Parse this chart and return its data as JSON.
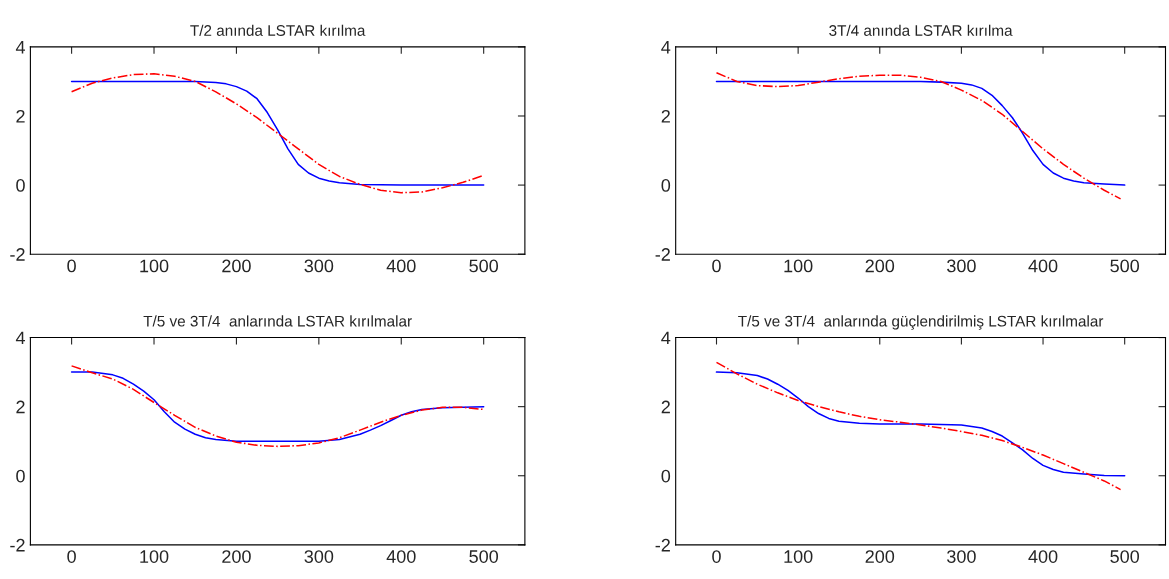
{
  "chart_data": [
    {
      "type": "line",
      "title": "T/2 anında LSTAR kırılma",
      "xlim": [
        -50,
        550
      ],
      "ylim": [
        -2,
        4
      ],
      "xticks": [
        0,
        100,
        200,
        300,
        400,
        500
      ],
      "yticks": [
        -2,
        0,
        2,
        4
      ],
      "series": [
        {
          "color": "#0000ff",
          "line_style": "solid",
          "x": [
            0,
            50,
            100,
            150,
            175,
            187.5,
            200,
            212.5,
            225,
            237.5,
            250,
            262.5,
            275,
            287.5,
            300,
            312.5,
            325,
            350,
            400,
            500
          ],
          "values": [
            3,
            3,
            3,
            3,
            2.97,
            2.93,
            2.85,
            2.72,
            2.5,
            2.1,
            1.6,
            1.05,
            0.6,
            0.35,
            0.2,
            0.12,
            0.07,
            0.02,
            0,
            0
          ]
        },
        {
          "color": "#ff0000",
          "line_style": "dashdot",
          "x": [
            0,
            25,
            50,
            75,
            100,
            125,
            150,
            175,
            200,
            225,
            250,
            275,
            300,
            325,
            350,
            375,
            400,
            425,
            450,
            475,
            500
          ],
          "values": [
            2.7,
            2.95,
            3.1,
            3.2,
            3.22,
            3.15,
            3.0,
            2.7,
            2.35,
            1.95,
            1.5,
            1.05,
            0.6,
            0.25,
            0.02,
            -0.15,
            -0.22,
            -0.2,
            -0.08,
            0.08,
            0.28
          ]
        }
      ]
    },
    {
      "type": "line",
      "title": "3T/4 anında LSTAR kırılma",
      "xlim": [
        -50,
        550
      ],
      "ylim": [
        -2,
        4
      ],
      "xticks": [
        0,
        100,
        200,
        300,
        400,
        500
      ],
      "yticks": [
        -2,
        0,
        2,
        4
      ],
      "series": [
        {
          "color": "#0000ff",
          "line_style": "solid",
          "x": [
            0,
            250,
            275,
            300,
            312.5,
            325,
            337.5,
            350,
            362.5,
            375,
            387.5,
            400,
            412.5,
            425,
            437.5,
            450,
            475,
            500
          ],
          "values": [
            3,
            3,
            2.98,
            2.95,
            2.9,
            2.8,
            2.6,
            2.3,
            1.95,
            1.5,
            1.0,
            0.6,
            0.35,
            0.2,
            0.12,
            0.07,
            0.03,
            0
          ]
        },
        {
          "color": "#ff0000",
          "line_style": "dashdot",
          "x": [
            0,
            25,
            50,
            75,
            100,
            125,
            150,
            175,
            200,
            225,
            250,
            275,
            300,
            325,
            350,
            375,
            400,
            425,
            450,
            475,
            495
          ],
          "values": [
            3.25,
            3.0,
            2.88,
            2.85,
            2.88,
            2.98,
            3.08,
            3.15,
            3.18,
            3.18,
            3.12,
            3.0,
            2.75,
            2.45,
            2.05,
            1.55,
            1.05,
            0.6,
            0.2,
            -0.15,
            -0.4
          ]
        }
      ]
    },
    {
      "type": "line",
      "title": "T/5 ve 3T/4  anlarında LSTAR kırılmalar",
      "xlim": [
        -50,
        550
      ],
      "ylim": [
        -2,
        4
      ],
      "xticks": [
        0,
        100,
        200,
        300,
        400,
        500
      ],
      "yticks": [
        -2,
        0,
        2,
        4
      ],
      "series": [
        {
          "color": "#0000ff",
          "line_style": "solid",
          "x": [
            0,
            25,
            50,
            62.5,
            75,
            87.5,
            100,
            112.5,
            125,
            137.5,
            150,
            162.5,
            175,
            200,
            250,
            300,
            325,
            350,
            362.5,
            375,
            387.5,
            400,
            412.5,
            425,
            450,
            500
          ],
          "values": [
            3,
            3,
            2.92,
            2.82,
            2.65,
            2.45,
            2.2,
            1.85,
            1.55,
            1.35,
            1.2,
            1.1,
            1.05,
            1.0,
            1.0,
            1.0,
            1.05,
            1.2,
            1.32,
            1.45,
            1.6,
            1.75,
            1.85,
            1.92,
            1.97,
            2.0
          ]
        },
        {
          "color": "#ff0000",
          "line_style": "dashdot",
          "x": [
            0,
            25,
            50,
            75,
            100,
            125,
            150,
            175,
            200,
            225,
            250,
            275,
            300,
            325,
            350,
            375,
            400,
            425,
            450,
            475,
            500
          ],
          "values": [
            3.18,
            2.98,
            2.8,
            2.5,
            2.12,
            1.75,
            1.4,
            1.15,
            0.97,
            0.88,
            0.85,
            0.87,
            0.95,
            1.1,
            1.32,
            1.55,
            1.75,
            1.9,
            1.98,
            1.98,
            1.92
          ]
        }
      ]
    },
    {
      "type": "line",
      "title": "T/5 ve 3T/4  anlarında güçlendirilmiş LSTAR kırılmalar",
      "xlim": [
        -50,
        550
      ],
      "ylim": [
        -2,
        4
      ],
      "xticks": [
        0,
        100,
        200,
        300,
        400,
        500
      ],
      "yticks": [
        -2,
        0,
        2,
        4
      ],
      "series": [
        {
          "color": "#0000ff",
          "line_style": "solid",
          "x": [
            0,
            25,
            50,
            62.5,
            75,
            87.5,
            100,
            112.5,
            125,
            137.5,
            150,
            175,
            200,
            250,
            300,
            325,
            337.5,
            350,
            362.5,
            375,
            387.5,
            400,
            412.5,
            425,
            450,
            475,
            500
          ],
          "values": [
            3,
            2.98,
            2.9,
            2.8,
            2.65,
            2.47,
            2.25,
            2.0,
            1.8,
            1.66,
            1.58,
            1.52,
            1.5,
            1.5,
            1.47,
            1.38,
            1.28,
            1.15,
            0.95,
            0.75,
            0.5,
            0.3,
            0.18,
            0.1,
            0.05,
            0.01,
            0
          ]
        },
        {
          "color": "#ff0000",
          "line_style": "dashdot",
          "x": [
            0,
            25,
            50,
            75,
            100,
            125,
            150,
            175,
            200,
            225,
            250,
            275,
            300,
            325,
            350,
            375,
            400,
            425,
            450,
            475,
            495
          ],
          "values": [
            3.28,
            2.95,
            2.65,
            2.4,
            2.18,
            2.0,
            1.85,
            1.72,
            1.62,
            1.55,
            1.47,
            1.38,
            1.28,
            1.17,
            1.02,
            0.82,
            0.6,
            0.35,
            0.1,
            -0.15,
            -0.4
          ]
        }
      ]
    }
  ]
}
